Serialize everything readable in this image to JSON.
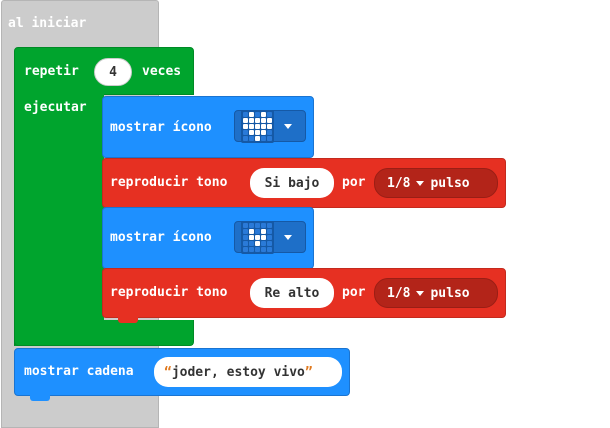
{
  "colors": {
    "event": "#cccccc",
    "loop": "#00a42d",
    "basic": "#1e90ff",
    "music": "#e63022",
    "music_dark": "#b32419"
  },
  "event_block": {
    "label": "al iniciar"
  },
  "repeat_block": {
    "label_repeat": "repetir",
    "count": "4",
    "label_times": "veces",
    "label_do": "ejecutar"
  },
  "show_icon_1": {
    "label": "mostrar ícono",
    "icon_name": "heart-icon",
    "pattern": [
      0,
      1,
      0,
      1,
      0,
      1,
      1,
      1,
      1,
      1,
      1,
      1,
      1,
      1,
      1,
      0,
      1,
      1,
      1,
      0,
      0,
      0,
      1,
      0,
      0
    ]
  },
  "play_tone_1": {
    "label": "reproducir tono",
    "note": "Si bajo",
    "label_for": "por",
    "beat": "1/8",
    "label_beat": "pulso"
  },
  "show_icon_2": {
    "label": "mostrar ícono",
    "icon_name": "small-heart-icon",
    "pattern": [
      0,
      0,
      0,
      0,
      0,
      0,
      1,
      0,
      1,
      0,
      0,
      1,
      1,
      1,
      0,
      0,
      0,
      1,
      0,
      0,
      0,
      0,
      0,
      0,
      0
    ]
  },
  "play_tone_2": {
    "label": "reproducir tono",
    "note": "Re alto",
    "label_for": "por",
    "beat": "1/8",
    "label_beat": "pulso"
  },
  "show_string": {
    "label": "mostrar cadena",
    "quote_open": "“",
    "value": "joder, estoy vivo",
    "quote_close": "”"
  }
}
